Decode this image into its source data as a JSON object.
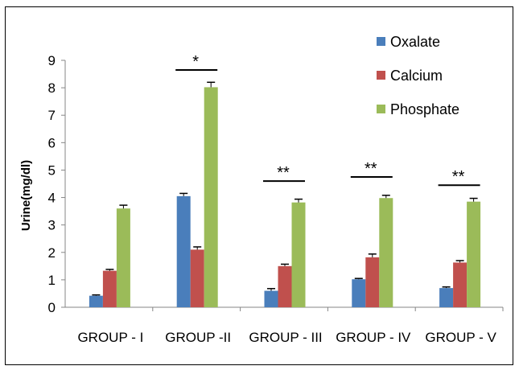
{
  "chart_data": {
    "type": "bar",
    "title": "",
    "xlabel": "",
    "ylabel": "Urine(mg/dl)",
    "ylim": [
      0,
      9
    ],
    "yticks": [
      0,
      1,
      2,
      3,
      4,
      5,
      6,
      7,
      8,
      9
    ],
    "grid": false,
    "legend_position": "top-right",
    "categories": [
      "GROUP - I",
      "GROUP -II",
      "GROUP - III",
      "GROUP - IV",
      "GROUP - V"
    ],
    "series": [
      {
        "name": "Oxalate",
        "color": "#4a7ebb",
        "values": [
          0.42,
          4.05,
          0.6,
          1.02,
          0.7
        ],
        "errors": [
          0.03,
          0.1,
          0.08,
          0.03,
          0.04
        ]
      },
      {
        "name": "Calcium",
        "color": "#c0504d",
        "values": [
          1.33,
          2.1,
          1.5,
          1.82,
          1.63
        ],
        "errors": [
          0.05,
          0.1,
          0.07,
          0.12,
          0.07
        ]
      },
      {
        "name": "Phosphate",
        "color": "#9bbb59",
        "values": [
          3.6,
          8.02,
          3.82,
          3.98,
          3.85
        ],
        "errors": [
          0.12,
          0.18,
          0.12,
          0.1,
          0.12
        ]
      }
    ],
    "annotations": [
      {
        "category_index": 1,
        "text": "*",
        "y": 8.65
      },
      {
        "category_index": 2,
        "text": "**",
        "y": 4.6
      },
      {
        "category_index": 3,
        "text": "**",
        "y": 4.75
      },
      {
        "category_index": 4,
        "text": "**",
        "y": 4.45
      }
    ]
  }
}
